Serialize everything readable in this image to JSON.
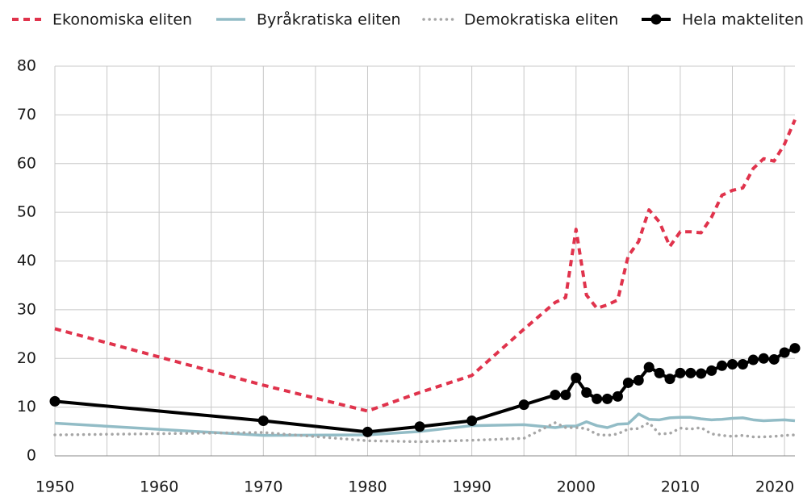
{
  "chart_data": {
    "type": "line",
    "x": [
      1950,
      1970,
      1980,
      1985,
      1990,
      1995,
      1998,
      1999,
      2000,
      2001,
      2002,
      2003,
      2004,
      2005,
      2006,
      2007,
      2008,
      2009,
      2010,
      2011,
      2012,
      2013,
      2014,
      2015,
      2016,
      2017,
      2018,
      2019,
      2020,
      2021
    ],
    "series": [
      {
        "name": "Ekonomiska eliten",
        "color": "#e0334c",
        "style": "dashed",
        "values": [
          26.1,
          14.5,
          9.2,
          13,
          16.5,
          26,
          31.5,
          32.5,
          46.5,
          33,
          30.3,
          31,
          32,
          41,
          44,
          50.5,
          48,
          43,
          46,
          46,
          45.8,
          49,
          53.5,
          54.5,
          55,
          59,
          61,
          60.5,
          64,
          69
        ]
      },
      {
        "name": "Byråkratiska eliten",
        "color": "#92bcc6",
        "style": "solid",
        "values": [
          6.7,
          4.2,
          4.3,
          5,
          6.2,
          6.4,
          5.8,
          6.1,
          6.1,
          7,
          6.2,
          5.8,
          6.5,
          6.6,
          8.6,
          7.5,
          7.4,
          7.8,
          7.9,
          7.9,
          7.6,
          7.4,
          7.5,
          7.7,
          7.8,
          7.4,
          7.2,
          7.3,
          7.4,
          7.2
        ]
      },
      {
        "name": "Demokratiska eliten",
        "color": "#a6a6a6",
        "style": "dotted",
        "values": [
          4.3,
          4.8,
          3.1,
          2.9,
          3.2,
          3.6,
          6.8,
          5.8,
          5.8,
          5.6,
          4.4,
          4.2,
          4.5,
          5.5,
          5.6,
          6.8,
          4.5,
          4.6,
          5.7,
          5.5,
          5.8,
          4.5,
          4.2,
          4.0,
          4.2,
          3.9,
          3.9,
          4.0,
          4.2,
          4.3
        ]
      },
      {
        "name": "Hela makteliten",
        "color": "#000000",
        "style": "markers",
        "values": [
          11.2,
          7.2,
          4.9,
          6.0,
          7.2,
          10.5,
          12.5,
          12.5,
          16,
          13,
          11.7,
          11.7,
          12.2,
          15,
          15.5,
          18.2,
          17,
          15.8,
          17,
          17,
          16.9,
          17.5,
          18.5,
          18.8,
          18.8,
          19.7,
          20,
          19.8,
          21.2,
          22.1
        ]
      }
    ],
    "xlim": [
      1950,
      2021
    ],
    "xticks": [
      1950,
      1960,
      1970,
      1980,
      1990,
      2000,
      2010,
      2020
    ],
    "x_minor_ticks": [
      1955,
      1965,
      1975,
      1985,
      1995,
      2005,
      2015
    ],
    "ylim": [
      0,
      80
    ],
    "yticks": [
      0,
      10,
      20,
      30,
      40,
      50,
      60,
      70,
      80
    ],
    "grid": true,
    "legend": "top"
  }
}
